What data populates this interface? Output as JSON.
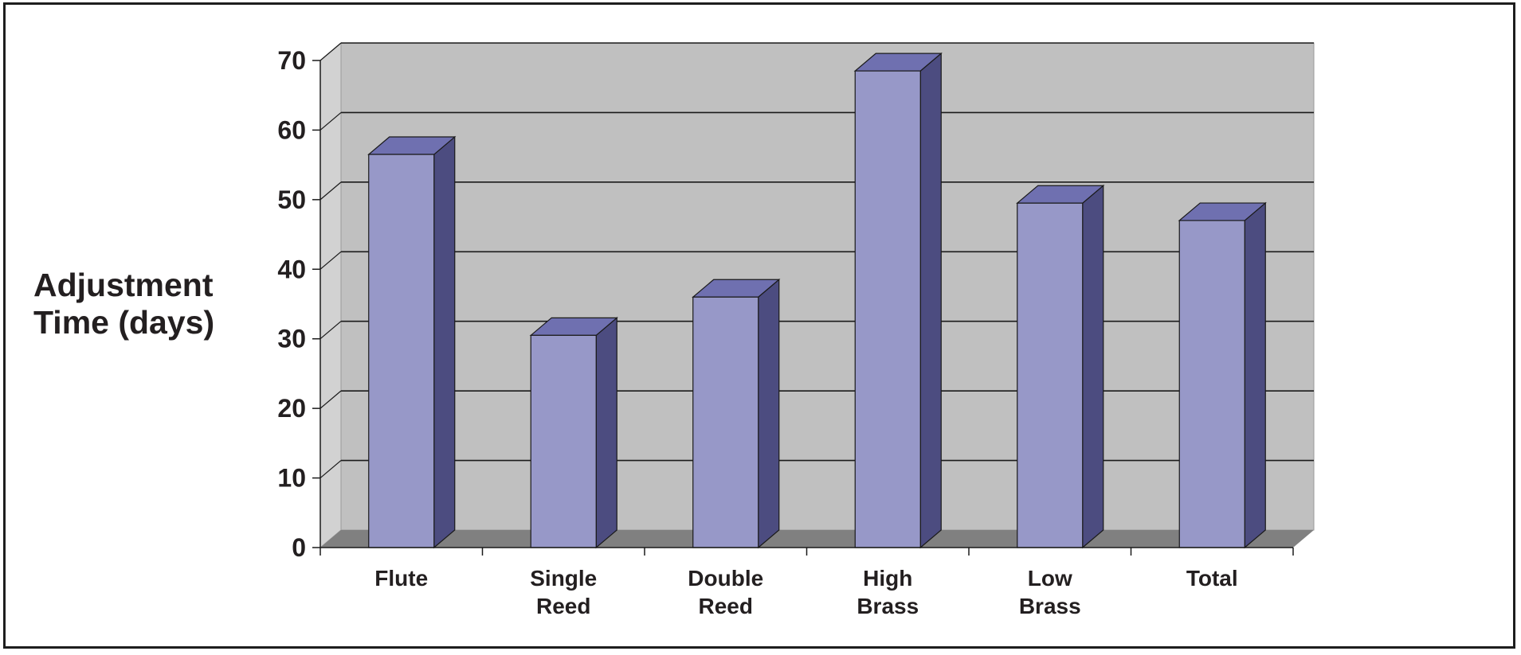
{
  "chart_data": {
    "type": "bar",
    "style": "3d-column",
    "title": "",
    "xlabel": "",
    "ylabel_lines": [
      "Adjustment",
      "Time (days)"
    ],
    "categories": [
      [
        "Flute"
      ],
      [
        "Single",
        "Reed"
      ],
      [
        "Double",
        "Reed"
      ],
      [
        "High",
        "Brass"
      ],
      [
        "Low",
        "Brass"
      ],
      [
        "Total"
      ]
    ],
    "values": [
      56.5,
      30.5,
      36,
      68.5,
      49.5,
      47
    ],
    "ylim": [
      0,
      70
    ],
    "yticks": [
      0,
      10,
      20,
      30,
      40,
      50,
      60,
      70
    ],
    "grid": true,
    "legend": "none",
    "colors": {
      "bar_front": "#9798c8",
      "bar_side": "#4c4c80",
      "bar_top": "#6f70b0",
      "back_wall": "#c0c0c0",
      "side_wall": "#d2d2d2",
      "floor": "#808080",
      "gridline": "#1a1a1a"
    }
  }
}
